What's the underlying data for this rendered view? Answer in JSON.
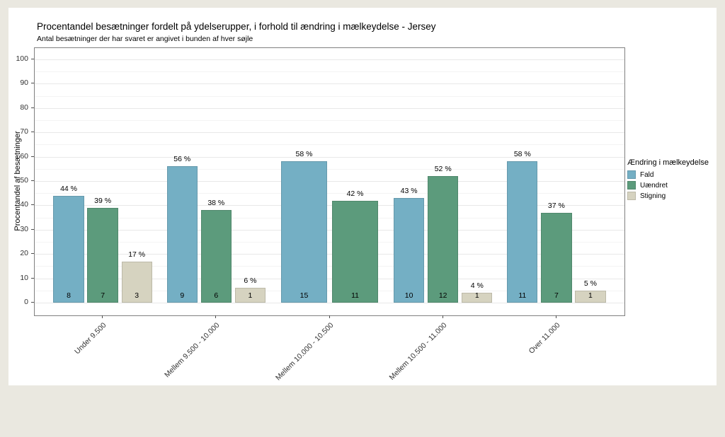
{
  "page": {
    "background_color": "#EAE8E0",
    "card_background_color": "#FFFFFF"
  },
  "chart_data": {
    "type": "bar",
    "title": "Procentandel besætninger fordelt på ydelserupper, i forhold til ændring i mælkeydelse - Jersey",
    "subtitle": "Antal besætninger der har svaret er angivet i bunden af hver søjle",
    "xlabel": "",
    "ylabel": "Procentandel af besætninger",
    "ylim": [
      0,
      100
    ],
    "yticks": [
      0,
      10,
      20,
      30,
      40,
      50,
      60,
      70,
      80,
      90,
      100
    ],
    "grid": "horizontal major + minor, light gray on white panel",
    "legend_title": "Ændring i mælkeydelse",
    "legend_position": "right",
    "value_suffix": " %",
    "bar_label_note": "percent shown above each bar, respondent count shown at bar base",
    "categories": [
      "Under 9.500",
      "Mellem 9.500 - 10.000",
      "Mellem 10.000 - 10.500",
      "Mellem 10.500 - 11.000",
      "Over 11.000"
    ],
    "series": [
      {
        "name": "Fald",
        "color": "#74AFC4",
        "values": [
          44,
          56,
          58,
          43,
          58
        ],
        "counts": [
          8,
          9,
          15,
          10,
          11
        ]
      },
      {
        "name": "Uændret",
        "color": "#5C9B7C",
        "values": [
          39,
          38,
          42,
          52,
          37
        ],
        "counts": [
          7,
          6,
          11,
          12,
          7
        ]
      },
      {
        "name": "Stigning",
        "color": "#D6D3C0",
        "values": [
          17,
          6,
          null,
          4,
          5
        ],
        "counts": [
          3,
          1,
          null,
          1,
          1
        ]
      }
    ]
  }
}
